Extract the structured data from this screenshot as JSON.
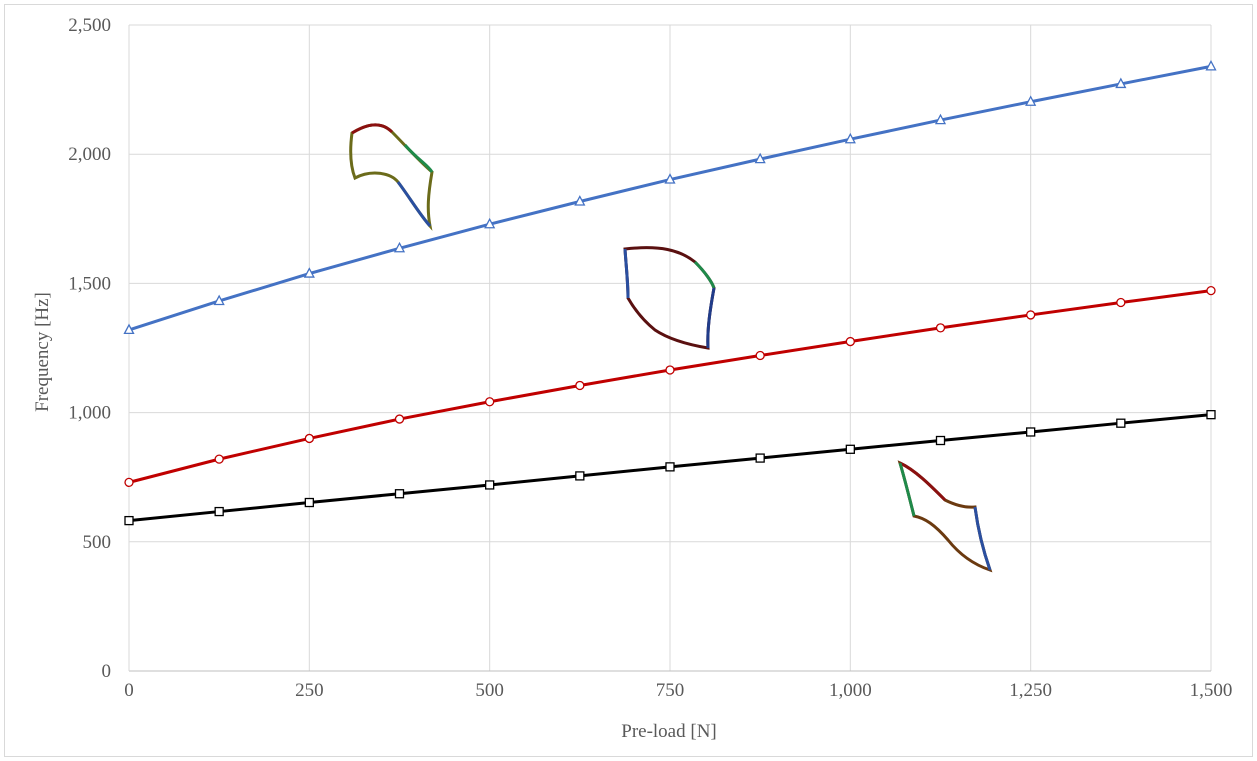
{
  "chart_data": {
    "type": "line",
    "title": "",
    "xlabel": "Pre-load [N]",
    "ylabel": "Frequency [Hz]",
    "xlim": [
      0,
      1500
    ],
    "ylim": [
      0,
      2500
    ],
    "grid": true,
    "legend": "none",
    "x": [
      0,
      125,
      250,
      375,
      500,
      625,
      750,
      875,
      1000,
      1125,
      1250,
      1375,
      1500
    ],
    "x_ticks": [
      0,
      250,
      500,
      750,
      1000,
      1250,
      1500
    ],
    "x_tick_labels": [
      "0",
      "250",
      "500",
      "750",
      "1,000",
      "1,250",
      "1,500"
    ],
    "y_ticks": [
      0,
      500,
      1000,
      1500,
      2000,
      2500
    ],
    "y_tick_labels": [
      "0",
      "500",
      "1,000",
      "1,500",
      "2,000",
      "2,500"
    ],
    "series": [
      {
        "color": "#4472c4",
        "marker": "triangle",
        "values": [
          1320,
          1432,
          1538,
          1636,
          1729,
          1817,
          1902,
          1981,
          2058,
          2132,
          2203,
          2272,
          2340
        ]
      },
      {
        "color": "#c00000",
        "marker": "circle",
        "values": [
          730,
          820,
          900,
          975,
          1042,
          1105,
          1165,
          1221,
          1275,
          1328,
          1378,
          1426,
          1472
        ]
      },
      {
        "color": "#000000",
        "marker": "square",
        "values": [
          582,
          617,
          652,
          686,
          720,
          755,
          790,
          824,
          858,
          892,
          925,
          959,
          992
        ]
      }
    ],
    "annotations": [
      {
        "type": "mode-shape-image",
        "depicts": "upper-mode-shape-icon"
      },
      {
        "type": "mode-shape-image",
        "depicts": "middle-mode-shape-icon"
      },
      {
        "type": "mode-shape-image",
        "depicts": "lower-mode-shape-icon"
      }
    ]
  }
}
